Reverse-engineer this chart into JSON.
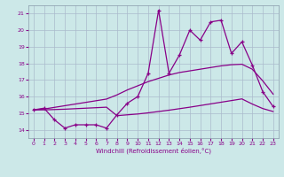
{
  "xlabel": "Windchill (Refroidissement éolien,°C)",
  "bg_color": "#cce8e8",
  "line_color": "#880088",
  "grid_color": "#aabbcc",
  "xlim": [
    -0.5,
    23.5
  ],
  "ylim": [
    13.5,
    21.5
  ],
  "yticks": [
    14,
    15,
    16,
    17,
    18,
    19,
    20,
    21
  ],
  "xticks": [
    0,
    1,
    2,
    3,
    4,
    5,
    6,
    7,
    8,
    9,
    10,
    11,
    12,
    13,
    14,
    15,
    16,
    17,
    18,
    19,
    20,
    21,
    22,
    23
  ],
  "line1_x": [
    0,
    1,
    2,
    3,
    4,
    5,
    6,
    7,
    8,
    9,
    10,
    11,
    12,
    13,
    14,
    15,
    16,
    17,
    18,
    19,
    20,
    21,
    22,
    23
  ],
  "line1_y": [
    15.2,
    15.3,
    14.6,
    14.1,
    14.3,
    14.3,
    14.3,
    14.1,
    14.9,
    15.6,
    16.0,
    17.4,
    21.2,
    17.4,
    18.5,
    20.0,
    19.4,
    20.5,
    20.6,
    18.6,
    19.3,
    17.9,
    16.3,
    15.4
  ],
  "line2_x": [
    0,
    1,
    2,
    3,
    4,
    5,
    6,
    7,
    8,
    9,
    10,
    11,
    12,
    13,
    14,
    15,
    16,
    17,
    18,
    19,
    20,
    21,
    22,
    23
  ],
  "line2_y": [
    15.2,
    15.25,
    15.35,
    15.45,
    15.55,
    15.65,
    15.75,
    15.85,
    16.1,
    16.4,
    16.65,
    16.9,
    17.1,
    17.3,
    17.45,
    17.55,
    17.65,
    17.75,
    17.85,
    17.92,
    17.95,
    17.65,
    16.95,
    16.15
  ],
  "line3_x": [
    0,
    1,
    2,
    3,
    4,
    5,
    6,
    7,
    8,
    9,
    10,
    11,
    12,
    13,
    14,
    15,
    16,
    17,
    18,
    19,
    20,
    21,
    22,
    23
  ],
  "line3_y": [
    15.2,
    15.2,
    15.22,
    15.24,
    15.27,
    15.3,
    15.33,
    15.36,
    14.85,
    14.9,
    14.95,
    15.02,
    15.1,
    15.18,
    15.27,
    15.36,
    15.46,
    15.56,
    15.66,
    15.76,
    15.86,
    15.55,
    15.28,
    15.1
  ]
}
